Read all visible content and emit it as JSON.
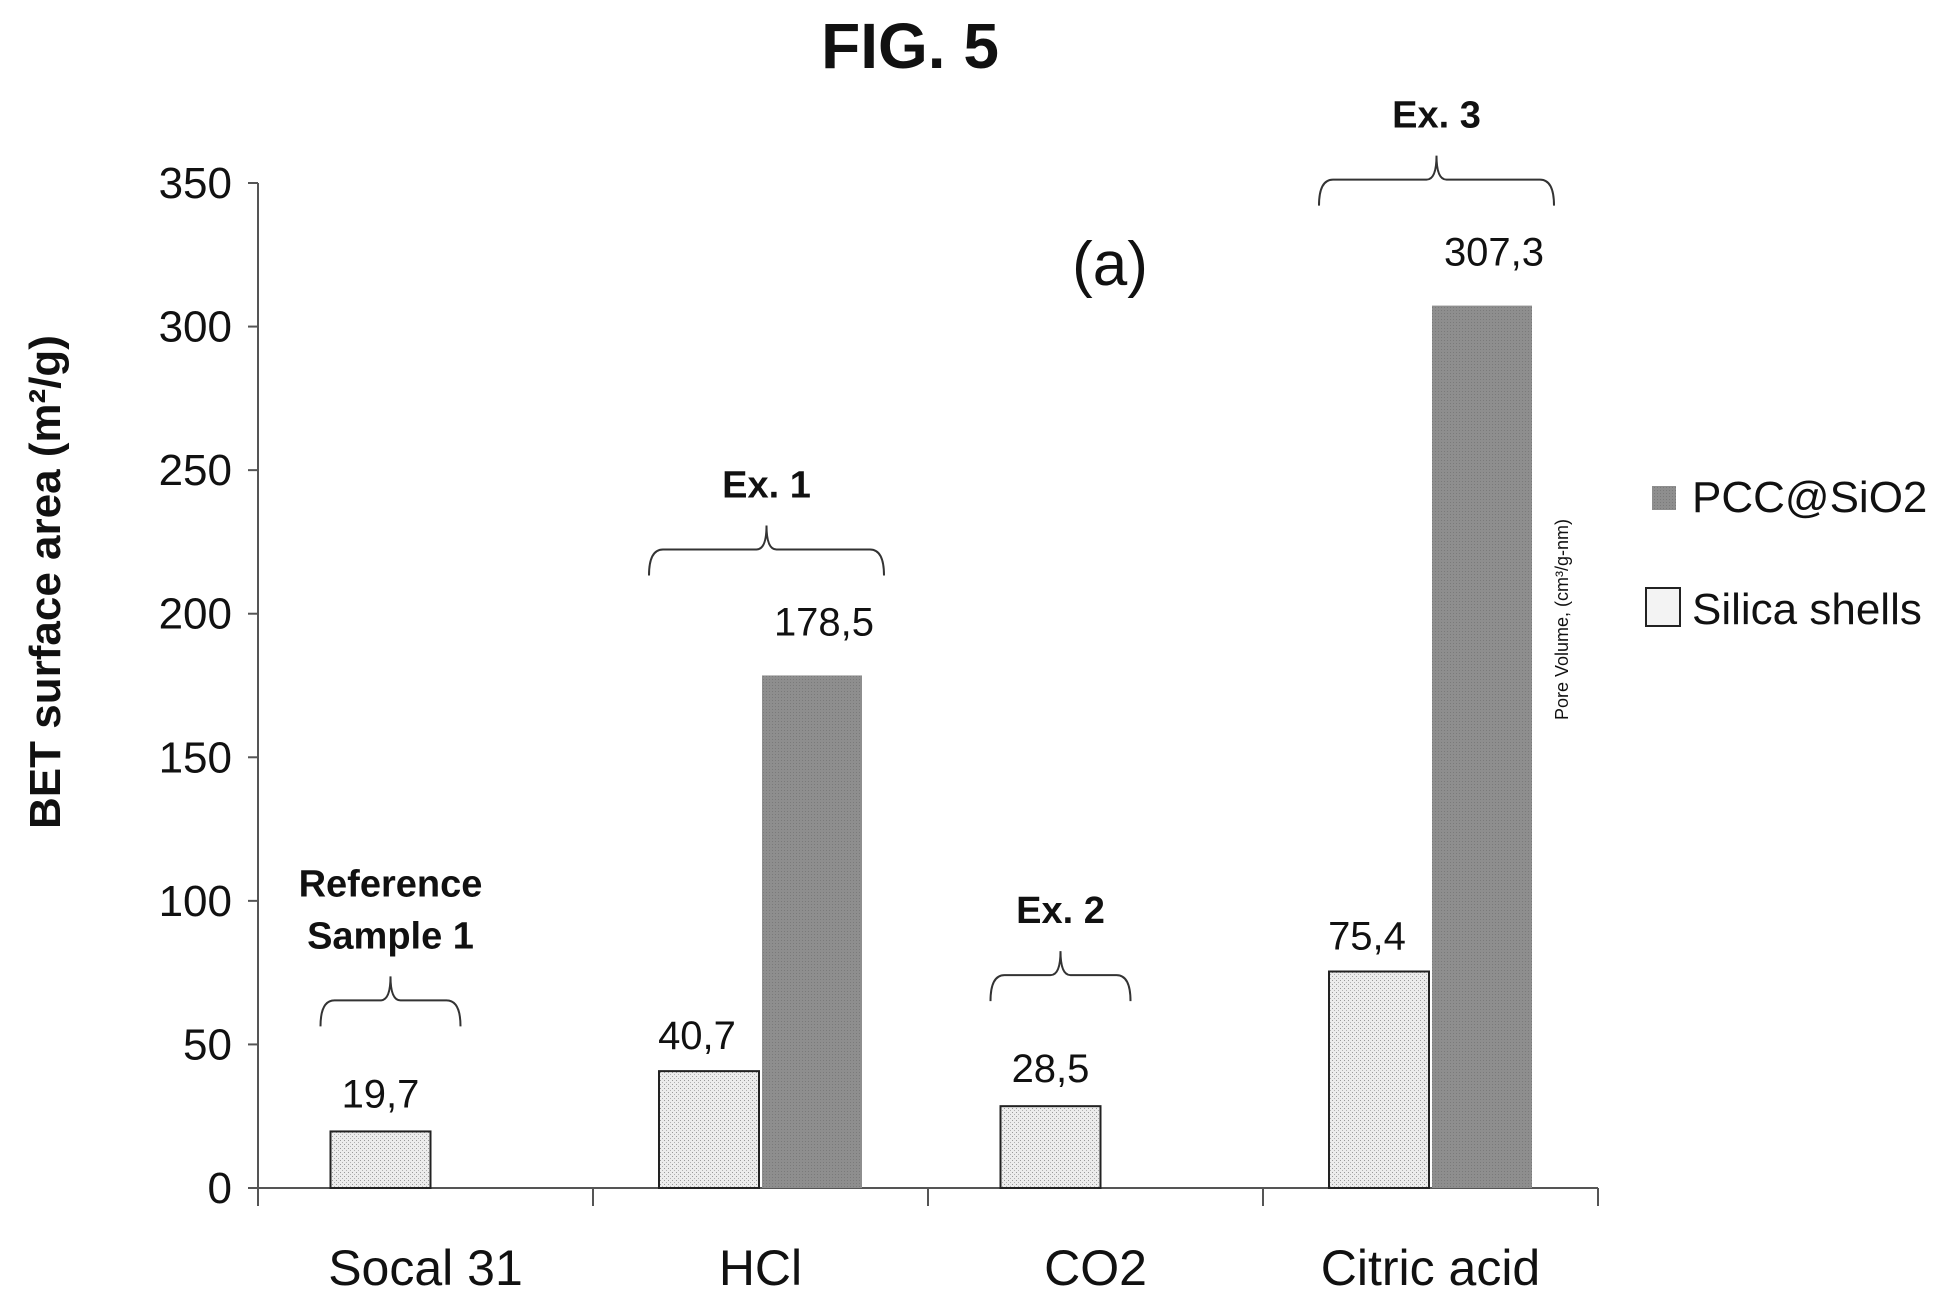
{
  "figure_title": "FIG. 5",
  "panel_label": "(a)",
  "side_label": "Pore Volume, (cm³/g-nm)",
  "colors": {
    "pcc_fill": "#8c8c8c",
    "silica_fill": "#e6e6e6",
    "axis": "#555555",
    "text": "#111111"
  },
  "chart_data": {
    "type": "bar",
    "title": "",
    "xlabel": "",
    "ylabel": "BET surface area (m²/g)",
    "ylim": [
      0,
      350
    ],
    "yticks": [
      0,
      50,
      100,
      150,
      200,
      250,
      300,
      350
    ],
    "categories": [
      "Socal 31",
      "HCl",
      "CO2",
      "Citric acid"
    ],
    "series": [
      {
        "name": "Silica shells",
        "values": [
          19.7,
          40.7,
          28.5,
          75.4
        ],
        "labels": [
          "19,7",
          "40,7",
          "28,5",
          "75,4"
        ]
      },
      {
        "name": "PCC@SiO2",
        "values": [
          null,
          178.5,
          null,
          307.3
        ],
        "labels": [
          "",
          "178,5",
          "",
          "307,3"
        ]
      }
    ],
    "legend_placement": "right",
    "legend_order": [
      "PCC@SiO2",
      "Silica shells"
    ],
    "grid": false,
    "annotations": [
      {
        "category": "Socal 31",
        "lines": [
          "Reference",
          "Sample 1"
        ]
      },
      {
        "category": "HCl",
        "lines": [
          "Ex. 1"
        ]
      },
      {
        "category": "CO2",
        "lines": [
          "Ex. 2"
        ]
      },
      {
        "category": "Citric acid",
        "lines": [
          "Ex. 3"
        ]
      }
    ]
  }
}
